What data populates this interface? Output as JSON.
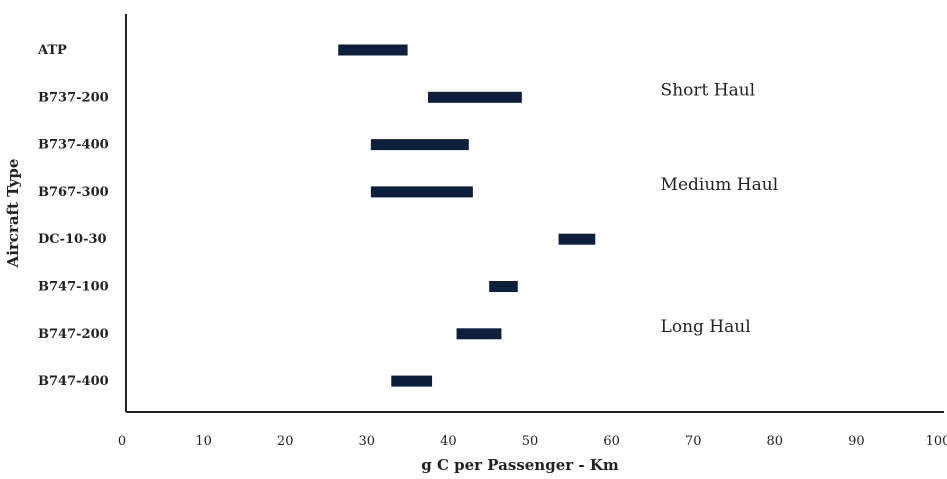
{
  "chart_data": {
    "type": "bar",
    "orientation": "horizontal-range",
    "title": "",
    "xlabel": "g C per Passenger - Km",
    "ylabel": "Aircraft Type",
    "xlim": [
      0,
      100
    ],
    "xticks": [
      0,
      10,
      20,
      30,
      40,
      50,
      60,
      70,
      80,
      90,
      100
    ],
    "grid": false,
    "bar_color": "#0d1f3c",
    "categories": [
      "ATP",
      "B737-200",
      "B737-400",
      "B767-300",
      "DC-10-30",
      "B747-100",
      "B747-200",
      "B747-400"
    ],
    "ranges": [
      {
        "category": "ATP",
        "low": 26.5,
        "high": 35.0
      },
      {
        "category": "B737-200",
        "low": 37.5,
        "high": 49.0
      },
      {
        "category": "B737-400",
        "low": 30.5,
        "high": 42.5
      },
      {
        "category": "B767-300",
        "low": 30.5,
        "high": 43.0
      },
      {
        "category": "DC-10-30",
        "low": 53.5,
        "high": 58.0
      },
      {
        "category": "B747-100",
        "low": 45.0,
        "high": 48.5
      },
      {
        "category": "B747-200",
        "low": 41.0,
        "high": 46.5
      },
      {
        "category": "B747-400",
        "low": 33.0,
        "high": 38.0
      }
    ],
    "annotations": [
      {
        "text": "Short Haul",
        "x": 66,
        "category": "B737-200"
      },
      {
        "text": "Medium Haul",
        "x": 66,
        "category": "B767-300"
      },
      {
        "text": "Long Haul",
        "x": 66,
        "category": "B747-200"
      }
    ]
  }
}
